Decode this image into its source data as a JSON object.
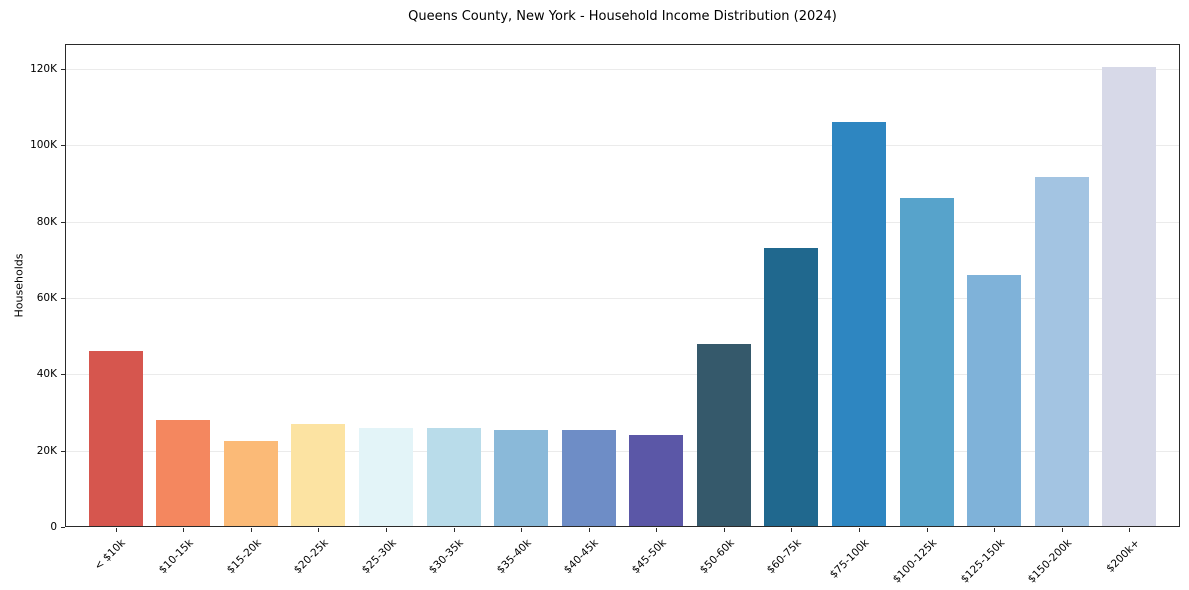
{
  "chart_data": {
    "type": "bar",
    "title": "Queens County, New York - Household Income Distribution (2024)",
    "ylabel": "Households",
    "xlabel": "",
    "categories": [
      "< $10k",
      "$10-15k",
      "$15-20k",
      "$20-25k",
      "$25-30k",
      "$30-35k",
      "$35-40k",
      "$40-45k",
      "$45-50k",
      "$50-60k",
      "$60-75k",
      "$75-100k",
      "$100-125k",
      "$125-150k",
      "$150-200k",
      "$200k+"
    ],
    "values": [
      46000,
      28000,
      22400,
      27000,
      26000,
      26000,
      25300,
      25300,
      24000,
      48000,
      73200,
      106000,
      86200,
      66000,
      91700,
      120500
    ],
    "bar_colors": [
      "#d6564e",
      "#f4875f",
      "#fbba77",
      "#fce3a2",
      "#e3f4f8",
      "#b9dcea",
      "#8ab9d9",
      "#6e8dc6",
      "#5b57a7",
      "#35596b",
      "#20688e",
      "#2e86c1",
      "#57a3cb",
      "#7fb2d9",
      "#a3c4e2",
      "#d7d9e8"
    ],
    "ylim": [
      0,
      126500
    ],
    "yticks": {
      "values": [
        0,
        20000,
        40000,
        60000,
        80000,
        100000,
        120000
      ],
      "labels": [
        "0",
        "20K",
        "40K",
        "60K",
        "80K",
        "100K",
        "120K"
      ]
    },
    "grid": "horizontal-faint",
    "legend": "none"
  }
}
